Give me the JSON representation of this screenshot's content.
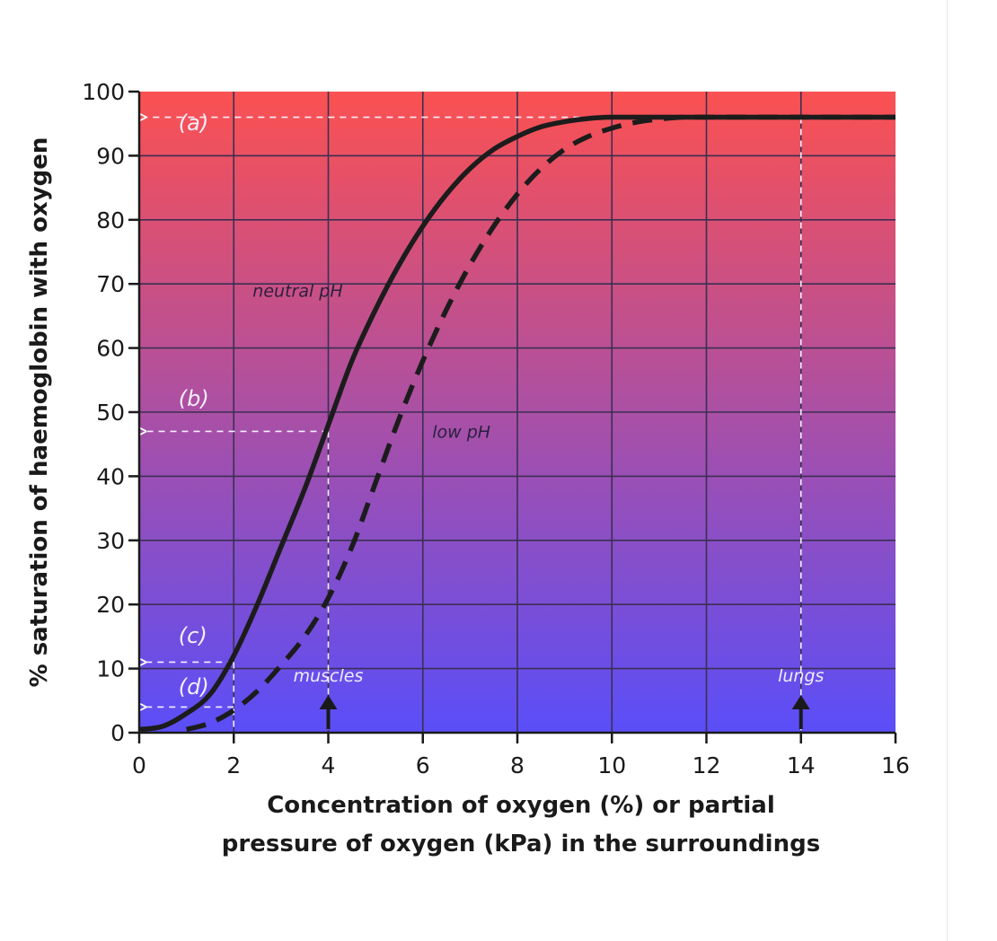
{
  "chart_data": {
    "type": "line",
    "xlabel": [
      "Concentration of oxygen (%) or partial",
      "pressure of oxygen (kPa) in the surroundings"
    ],
    "ylabel": "% saturation of haemoglobin with oxygen",
    "xlim": [
      0,
      16
    ],
    "ylim": [
      0,
      100
    ],
    "xticks": [
      0,
      2,
      4,
      6,
      8,
      10,
      12,
      14,
      16
    ],
    "yticks": [
      0,
      10,
      20,
      30,
      40,
      50,
      60,
      70,
      80,
      90,
      100
    ],
    "grid": true,
    "background": {
      "top": "#fb5151",
      "bottom": "#5a4ef8"
    },
    "series": [
      {
        "name": "neutral pH",
        "style": "solid",
        "color": "#1c1c1c",
        "x": [
          0,
          0.5,
          1,
          1.5,
          2,
          2.5,
          3,
          3.5,
          4,
          4.5,
          5,
          5.5,
          6,
          6.5,
          7,
          7.5,
          8,
          8.5,
          9,
          9.5,
          10,
          11,
          12,
          13,
          14,
          15,
          16
        ],
        "y": [
          0.5,
          1,
          3,
          6,
          12,
          20,
          29,
          38,
          48,
          58,
          66,
          73,
          79,
          84,
          88,
          91,
          93,
          94.5,
          95.3,
          95.8,
          96,
          96,
          96,
          96,
          96,
          96,
          96
        ]
      },
      {
        "name": "low pH",
        "style": "dashed",
        "color": "#1c1c1c",
        "x": [
          1,
          1.5,
          2,
          2.5,
          3,
          3.5,
          4,
          4.5,
          5,
          5.5,
          6,
          6.5,
          7,
          7.5,
          8,
          8.5,
          9,
          9.5,
          10,
          10.5,
          11,
          11.5,
          12,
          13,
          14,
          15,
          16
        ],
        "y": [
          0.5,
          1.5,
          3.5,
          6.5,
          10.5,
          15,
          21,
          29,
          39,
          49,
          58,
          66,
          73,
          79,
          84,
          88,
          91,
          93,
          94.3,
          95.2,
          95.7,
          96,
          96,
          96,
          96,
          96,
          96
        ]
      }
    ],
    "annotations": [
      {
        "id": "a",
        "text": "(a)",
        "x": 0.3,
        "y": 94
      },
      {
        "id": "b",
        "text": "(b)",
        "x": 0.3,
        "y": 51
      },
      {
        "id": "c",
        "text": "(c)",
        "x": 0.3,
        "y": 14
      },
      {
        "id": "d",
        "text": "(d)",
        "x": 0.3,
        "y": 6
      },
      {
        "id": "neutral",
        "text": "neutral pH",
        "x": 2.4,
        "y": 68
      },
      {
        "id": "low",
        "text": "low pH",
        "x": 6.2,
        "y": 46
      },
      {
        "id": "muscles",
        "text": "muscles",
        "x": 4,
        "y": 8
      },
      {
        "id": "lungs",
        "text": "lungs",
        "x": 14,
        "y": 8
      }
    ],
    "reference_lines": [
      {
        "name": "a",
        "from": [
          15,
          96
        ],
        "to": [
          0,
          96
        ],
        "arrow": "left"
      },
      {
        "name": "b",
        "from": [
          4,
          47
        ],
        "to": [
          0,
          47
        ],
        "arrow": "left"
      },
      {
        "name": "c",
        "from": [
          2,
          11
        ],
        "to": [
          0,
          11
        ],
        "arrow": "left"
      },
      {
        "name": "d",
        "from": [
          2,
          4
        ],
        "to": [
          0,
          4
        ],
        "arrow": "left"
      },
      {
        "name": "muscles-drop",
        "from": [
          4,
          47
        ],
        "to": [
          4,
          0
        ],
        "arrow": "none"
      },
      {
        "name": "c-drop",
        "from": [
          2,
          11
        ],
        "to": [
          2,
          0
        ],
        "arrow": "none"
      },
      {
        "name": "lungs-drop",
        "from": [
          14,
          96
        ],
        "to": [
          14,
          0
        ],
        "arrow": "none"
      }
    ],
    "markers": [
      {
        "name": "muscles-arrow",
        "x": 4
      },
      {
        "name": "lungs-arrow",
        "x": 14
      }
    ]
  }
}
